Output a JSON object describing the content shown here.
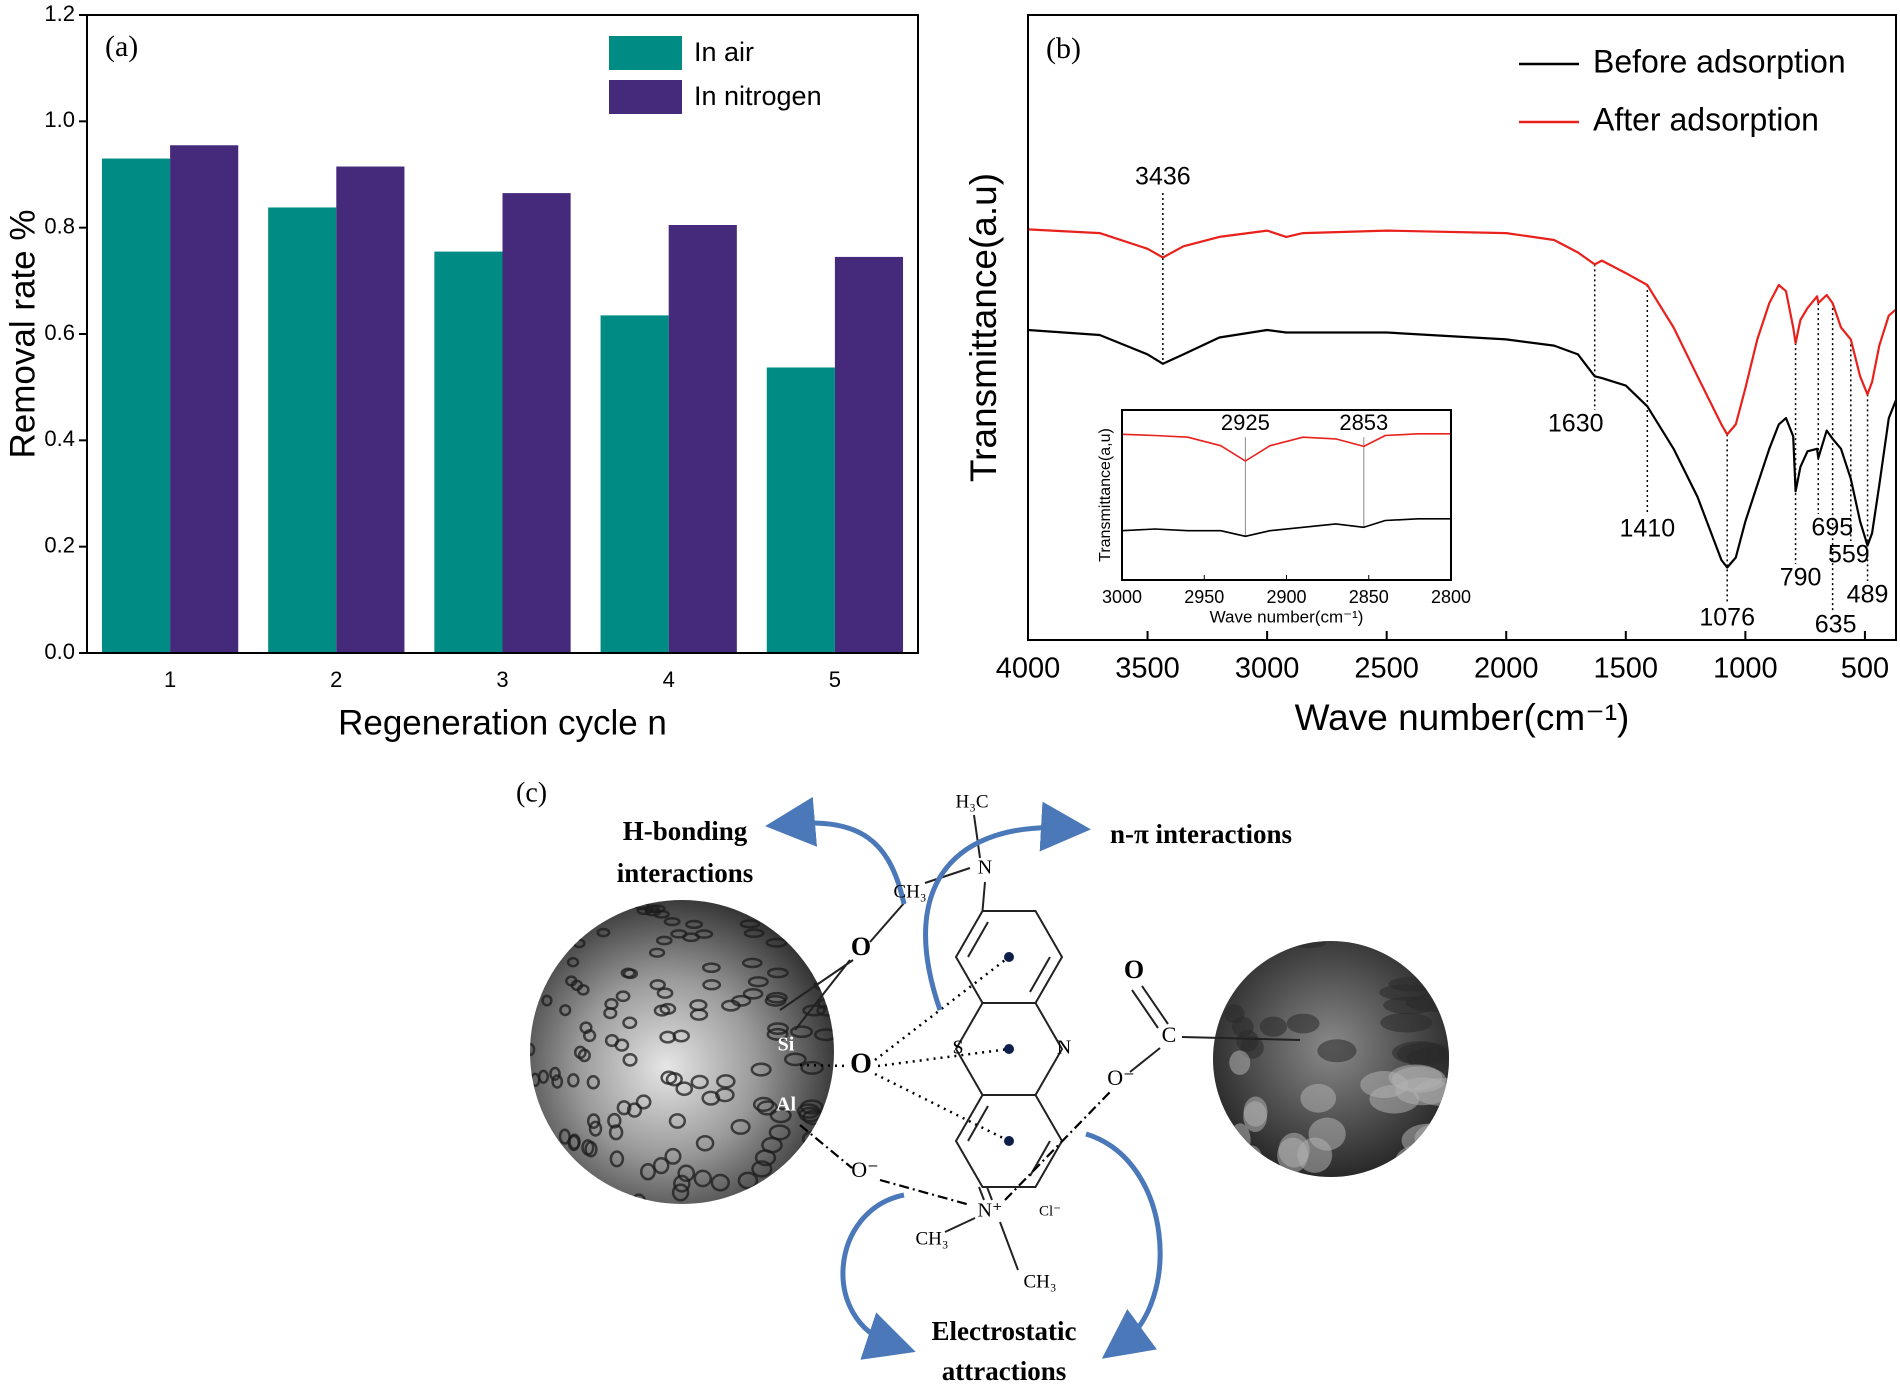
{
  "chart_data": [
    {
      "type": "bar",
      "panel_label": "(a)",
      "categories": [
        "1",
        "2",
        "3",
        "4",
        "5"
      ],
      "series": [
        {
          "name": "In air",
          "color": "#008b84",
          "values": [
            0.93,
            0.838,
            0.755,
            0.635,
            0.537
          ]
        },
        {
          "name": "In nitrogen",
          "color": "#452a7c",
          "values": [
            0.955,
            0.915,
            0.865,
            0.805,
            0.745
          ]
        }
      ],
      "ylim": [
        0,
        1.2
      ],
      "yticks": [
        {
          "value": 0,
          "label": "0.0"
        },
        0.2,
        0.4,
        0.6,
        0.8,
        {
          "value": 1,
          "label": "1.0"
        },
        1.2
      ],
      "xlabel": "Regeneration cycle n",
      "ylabel": "Removal rate %",
      "legend": "upper right"
    },
    {
      "type": "line",
      "panel_label": "(b)",
      "x": [
        4000,
        3700,
        3500,
        3436,
        3350,
        3200,
        3000,
        2920,
        2850,
        2500,
        2000,
        1800,
        1700,
        1630,
        1600,
        1500,
        1410,
        1300,
        1200,
        1100,
        1076,
        1040,
        1000,
        950,
        900,
        860,
        830,
        800,
        790,
        770,
        740,
        700,
        695,
        660,
        635,
        600,
        559,
        520,
        489,
        470,
        440,
        400,
        370
      ],
      "series": [
        {
          "name": "Before adsorption",
          "color": "#000000",
          "values": [
            4.96,
            4.88,
            4.57,
            4.42,
            4.57,
            4.84,
            4.96,
            4.92,
            4.92,
            4.92,
            4.81,
            4.71,
            4.57,
            4.22,
            4.19,
            4.07,
            3.74,
            3.06,
            2.29,
            1.28,
            1.16,
            1.32,
            1.9,
            2.48,
            3.06,
            3.45,
            3.55,
            3.26,
            2.38,
            2.77,
            3.02,
            3.06,
            2.91,
            3.35,
            3.22,
            3.06,
            2.58,
            1.9,
            1.51,
            1.71,
            2.48,
            3.55,
            3.84
          ]
        },
        {
          "name": "After adsorption",
          "color": "#e8211c",
          "values": [
            6.57,
            6.51,
            6.26,
            6.12,
            6.3,
            6.45,
            6.55,
            6.45,
            6.51,
            6.55,
            6.51,
            6.4,
            6.2,
            6.01,
            6.07,
            5.87,
            5.68,
            5.0,
            4.22,
            3.45,
            3.29,
            3.45,
            4.03,
            4.81,
            5.39,
            5.68,
            5.58,
            5.0,
            4.75,
            5.12,
            5.31,
            5.5,
            5.39,
            5.52,
            5.39,
            5.0,
            4.81,
            4.22,
            3.93,
            4.13,
            4.71,
            5.19,
            5.29
          ]
        }
      ],
      "xlim": [
        4000,
        370
      ],
      "xticks": [
        4000,
        3500,
        3000,
        2500,
        2000,
        1500,
        1000,
        500
      ],
      "ylim": [
        0,
        10
      ],
      "xlabel": "Wave number(cm⁻¹)",
      "ylabel": "Transmittance(a.u)",
      "legend": "upper right",
      "peaks": [
        3436,
        1630,
        1410,
        1076,
        790,
        695,
        635,
        559,
        489
      ]
    },
    {
      "type": "line",
      "inset": true,
      "x": [
        3000,
        2980,
        2960,
        2940,
        2925,
        2910,
        2890,
        2870,
        2853,
        2840,
        2820,
        2800
      ],
      "series": [
        {
          "name": "Before adsorption",
          "color": "#000000",
          "values": [
            2.9,
            3.0,
            2.9,
            2.9,
            2.57,
            2.9,
            3.1,
            3.3,
            3.1,
            3.5,
            3.6,
            3.6
          ]
        },
        {
          "name": "After adsorption",
          "color": "#e8211c",
          "values": [
            8.57,
            8.5,
            8.4,
            7.9,
            7.0,
            7.9,
            8.4,
            8.3,
            7.86,
            8.5,
            8.6,
            8.6
          ]
        }
      ],
      "xlim": [
        3000,
        2800
      ],
      "xticks": [
        3000,
        2950,
        2900,
        2850,
        2800
      ],
      "ylim": [
        0,
        10
      ],
      "xlabel": "Wave number(cm⁻¹)",
      "ylabel": "Transmittance(a,u)",
      "peaks": [
        2925,
        2853
      ]
    }
  ],
  "diagram": {
    "panel_label": "(c)",
    "interactions": [
      [
        "H-bonding",
        "interactions"
      ],
      [
        "n-π interactions"
      ],
      [
        "Electrostatic",
        "attractions"
      ]
    ],
    "atoms": [
      "H₃C",
      "N",
      "CH₃",
      "O",
      "Si",
      "Al",
      "O",
      "O⁻",
      "S",
      "N",
      "N⁺",
      "CH₃",
      "CH₃",
      "Cl⁻",
      "O",
      "C",
      "O⁻"
    ]
  }
}
